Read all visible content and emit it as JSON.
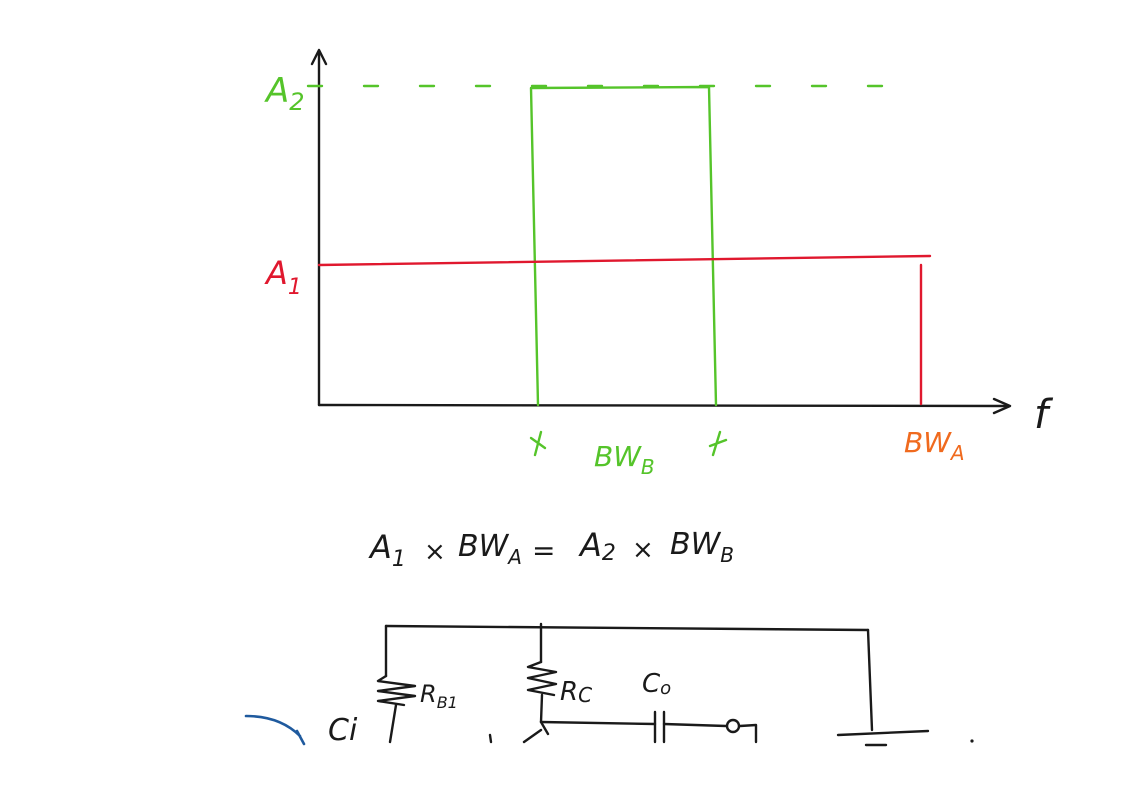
{
  "colors": {
    "ink": "#1a1a1a",
    "green": "#55c42a",
    "red": "#e0182e",
    "orange": "#f06a1e",
    "blue": "#1f5a9e"
  },
  "graph": {
    "y_axis_label_top": "A",
    "y_axis_label_top_sub": "2",
    "y_axis_label_mid": "A",
    "y_axis_label_mid_sub": "1",
    "x_axis_label": "f",
    "bw_b_label": "BW",
    "bw_b_sub": "B",
    "bw_a_label": "BW",
    "bw_a_sub": "A",
    "tick_marker": "x"
  },
  "equation": {
    "left_a": "A",
    "left_a_sub": "1",
    "times1": "×",
    "left_bw": "BW",
    "left_bw_sub": "A",
    "equals": "=",
    "right_a": "A",
    "right_a_sub": "2",
    "times2": "×",
    "right_bw": "BW",
    "right_bw_sub": "B"
  },
  "circuit": {
    "rb1_label": "R",
    "rb1_sub": "B1",
    "rc_label": "R",
    "rc_sub": "C",
    "co_label": "C",
    "co_sub": "o",
    "ci_label": "Ci"
  }
}
